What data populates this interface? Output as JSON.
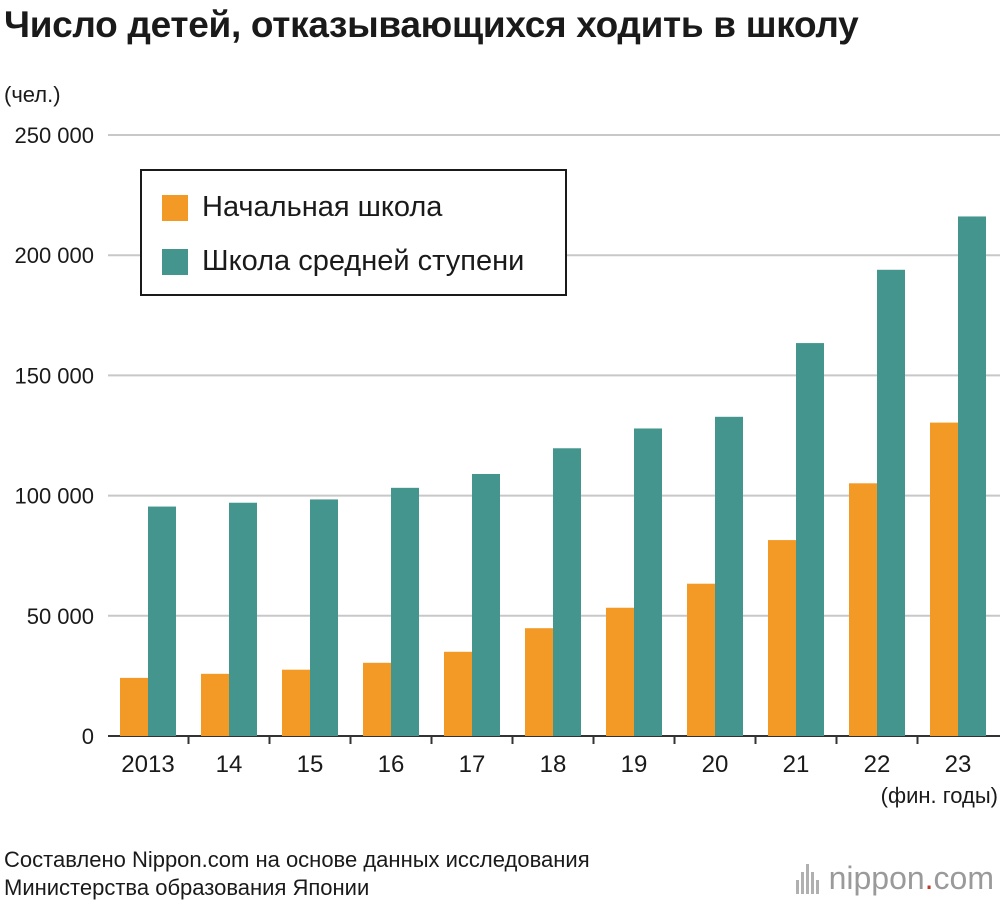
{
  "title": "Число детей, отказывающихся ходить в школу",
  "unit_label": "(чел.)",
  "x_unit_label": "(фин. годы)",
  "source_line1": "Составлено Nippon.com на основе данных исследования",
  "source_line2": "Министерства образования Японии",
  "logo_main": "nippon",
  "logo_dot": ".",
  "logo_suffix": "com",
  "colors": {
    "elementary": "#f39a26",
    "middle": "#43958d",
    "grid": "#c8c8c8",
    "axis": "#333333"
  },
  "chart_data": {
    "type": "bar",
    "title": "Число детей, отказывающихся ходить в школу",
    "xlabel": "(фин. годы)",
    "ylabel": "(чел.)",
    "categories": [
      "2013",
      "14",
      "15",
      "16",
      "17",
      "18",
      "19",
      "20",
      "21",
      "22",
      "23"
    ],
    "series": [
      {
        "name": "Начальная школа",
        "values": [
          24175,
          25864,
          27583,
          30448,
          35032,
          44841,
          53350,
          63350,
          81498,
          105112,
          130370
        ]
      },
      {
        "name": "Школа средней ступени",
        "values": [
          95442,
          97033,
          98408,
          103235,
          108999,
          119687,
          127922,
          132777,
          163442,
          193936,
          216112
        ]
      }
    ],
    "ylim": [
      0,
      250000
    ],
    "yticks": [
      0,
      50000,
      100000,
      150000,
      200000,
      250000
    ],
    "ytick_labels": [
      "0",
      "50 000",
      "100 000",
      "150 000",
      "200 000",
      "250 000"
    ],
    "grid": true,
    "legend_position": "top-left"
  }
}
